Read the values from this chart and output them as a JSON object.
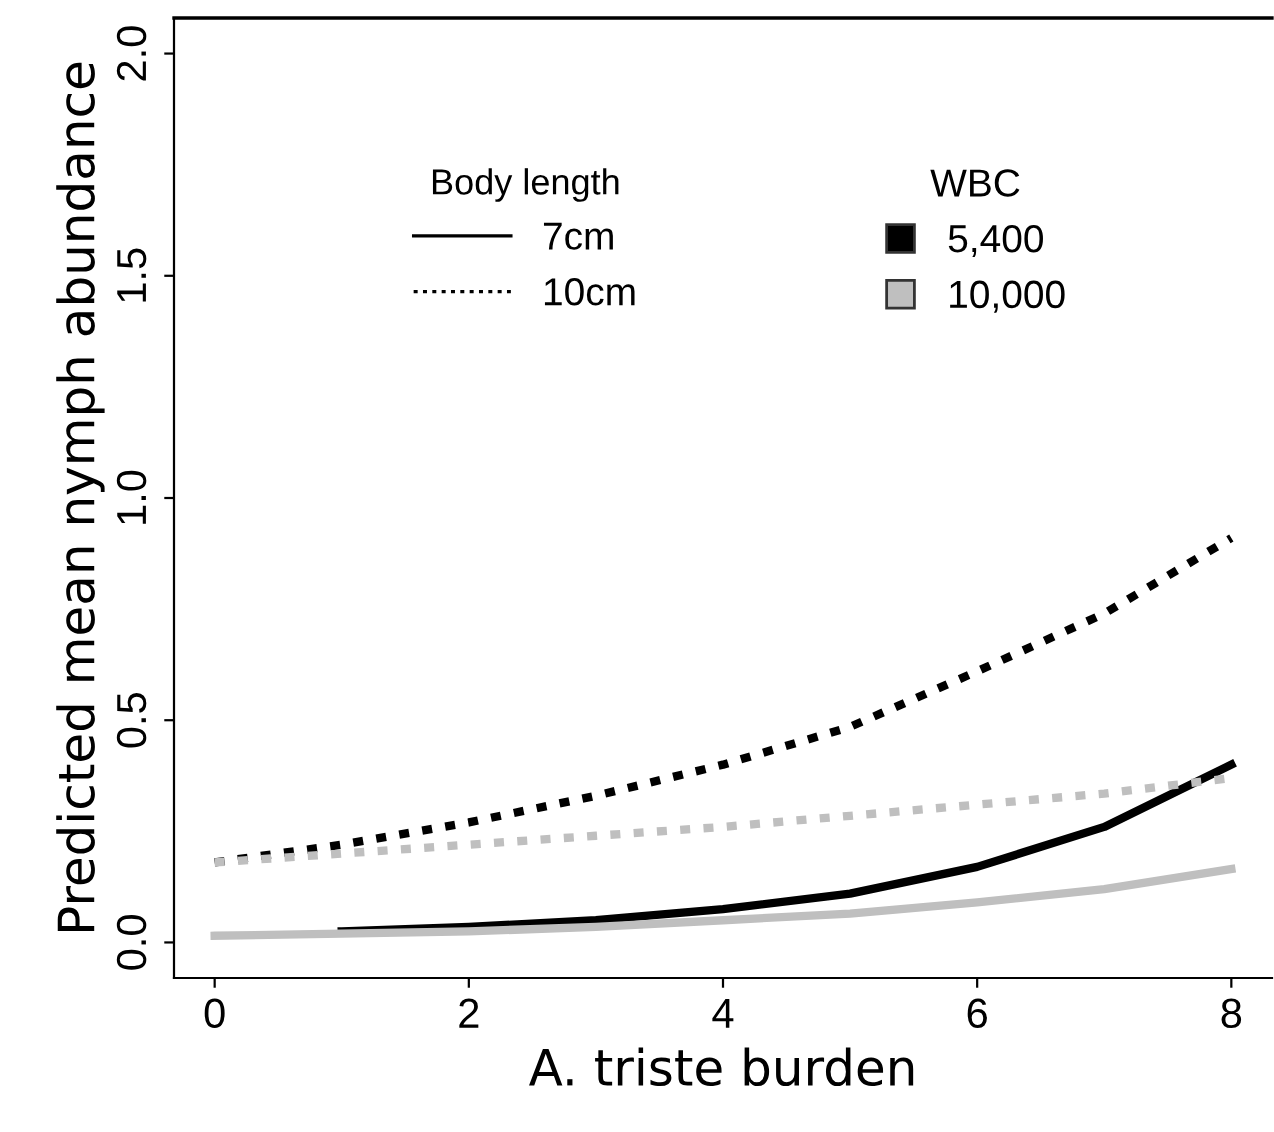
{
  "chart_data": {
    "type": "line",
    "xlabel": "A. triste burden",
    "ylabel": "Predicted mean nymph abundance",
    "x": [
      0,
      1,
      2,
      3,
      4,
      5,
      6,
      7,
      8
    ],
    "series": [
      {
        "color": "#000000",
        "line_style": "solid",
        "values": [
          null,
          0.025,
          0.035,
          0.05,
          0.075,
          0.11,
          0.17,
          0.26,
          0.4
        ]
      },
      {
        "color": "#000000",
        "line_style": "dotted",
        "values": [
          0.18,
          0.22,
          0.27,
          0.33,
          0.4,
          0.485,
          0.61,
          0.74,
          0.91
        ]
      },
      {
        "color": "#bfbfbf",
        "line_style": "solid",
        "values": [
          0.015,
          0.02,
          0.025,
          0.035,
          0.05,
          0.065,
          0.09,
          0.12,
          0.165
        ]
      },
      {
        "color": "#bfbfbf",
        "line_style": "dotted",
        "values": [
          0.18,
          0.2,
          0.22,
          0.24,
          0.26,
          0.285,
          0.31,
          0.335,
          0.37
        ]
      }
    ],
    "annotations": [
      "Body length",
      "7cm",
      "10cm",
      "WBC",
      "5,400",
      "10,000"
    ],
    "xlim": [
      -0.32,
      8.32
    ],
    "ylim": [
      -0.08,
      2.08
    ],
    "xticks": [
      0,
      2,
      4,
      6,
      8
    ],
    "yticks": [
      {
        "value": 0,
        "label": "0.0"
      },
      {
        "value": 0.5,
        "label": "0.5"
      },
      {
        "value": 1,
        "label": "1.0"
      },
      {
        "value": 1.5,
        "label": "1.5"
      },
      {
        "value": 2,
        "label": "2.0"
      }
    ],
    "grid": false,
    "marker": "none"
  }
}
